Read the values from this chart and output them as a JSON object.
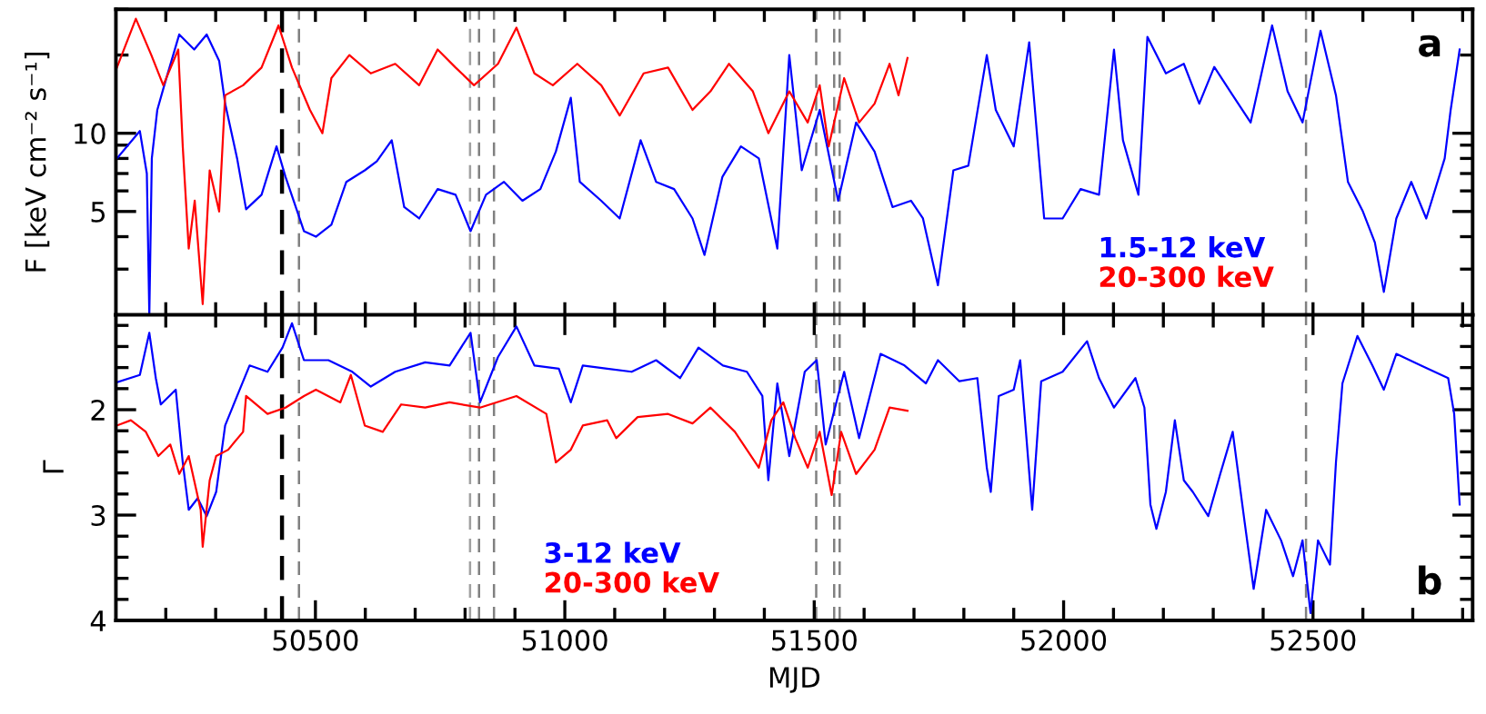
{
  "chart_data": [
    {
      "type": "line",
      "ylabel": "F [keV cm⁻² s⁻¹]",
      "log": "y",
      "tick_labels": "y",
      "legend": "bottom right",
      "annotations": [
        "a"
      ],
      "xlim": [
        50100,
        52820
      ],
      "xticks": [
        {
          "value": 50200,
          "label": null
        },
        {
          "value": 50300,
          "label": null
        },
        {
          "value": 50400,
          "label": null
        },
        {
          "value": 50500,
          "label": null
        },
        {
          "value": 50600,
          "label": null
        },
        {
          "value": 50700,
          "label": null
        },
        {
          "value": 50800,
          "label": null
        },
        {
          "value": 50900,
          "label": null
        },
        {
          "value": 51000,
          "label": null
        },
        {
          "value": 51100,
          "label": null
        },
        {
          "value": 51200,
          "label": null
        },
        {
          "value": 51300,
          "label": null
        },
        {
          "value": 51400,
          "label": null
        },
        {
          "value": 51500,
          "label": null
        },
        {
          "value": 51600,
          "label": null
        },
        {
          "value": 51700,
          "label": null
        },
        {
          "value": 51800,
          "label": null
        },
        {
          "value": 51900,
          "label": null
        },
        {
          "value": 52000,
          "label": null
        },
        {
          "value": 52100,
          "label": null
        },
        {
          "value": 52200,
          "label": null
        },
        {
          "value": 52300,
          "label": null
        },
        {
          "value": 52400,
          "label": null
        },
        {
          "value": 52500,
          "label": null
        },
        {
          "value": 52600,
          "label": null
        },
        {
          "value": 52700,
          "label": null
        },
        {
          "value": 52800,
          "label": null
        }
      ],
      "ylim": [
        2,
        30
      ],
      "yticks": [
        {
          "value": 2,
          "label": null
        },
        {
          "value": 3,
          "label": null
        },
        {
          "value": 4,
          "label": null
        },
        5,
        {
          "value": 6,
          "label": null
        },
        {
          "value": 7,
          "label": null
        },
        {
          "value": 8,
          "label": null
        },
        {
          "value": 9,
          "label": null
        },
        10,
        {
          "value": 20,
          "label": null
        },
        {
          "value": 30,
          "label": null
        }
      ],
      "ref_lines": [
        {
          "axis": "x",
          "value": 50433,
          "color": "#000000",
          "line_style": "dashed"
        },
        {
          "axis": "x",
          "value": 50467,
          "color": "#808080",
          "line_style": "dashed"
        },
        {
          "axis": "x",
          "value": 50810,
          "color": "#a0a0a0",
          "line_style": "dashed"
        },
        {
          "axis": "x",
          "value": 50828,
          "color": "#808080",
          "line_style": "dashed"
        },
        {
          "axis": "x",
          "value": 50858,
          "color": "#808080",
          "line_style": "dashed"
        },
        {
          "axis": "x",
          "value": 51504,
          "color": "#808080",
          "line_style": "dashed"
        },
        {
          "axis": "x",
          "value": 51540,
          "color": "#808080",
          "line_style": "dashed"
        },
        {
          "axis": "x",
          "value": 51551,
          "color": "#808080",
          "line_style": "dashed"
        },
        {
          "axis": "x",
          "value": 52486,
          "color": "#808080",
          "line_style": "dashed"
        }
      ],
      "series": [
        {
          "name": "1.5-12 keV",
          "color": "#0000ff",
          "x": [
            50102,
            50148,
            50162,
            50167,
            50172,
            50183,
            50197,
            50227,
            50257,
            50282,
            50307,
            50319,
            50343,
            50361,
            50392,
            50422,
            50440,
            50477,
            50501,
            50532,
            50562,
            50599,
            50623,
            50653,
            50678,
            50708,
            50745,
            50781,
            50811,
            50842,
            50878,
            50915,
            50951,
            50982,
            51012,
            51030,
            51073,
            51110,
            51152,
            51183,
            51219,
            51256,
            51280,
            51316,
            51353,
            51389,
            51426,
            51450,
            51475,
            51511,
            51548,
            51584,
            51621,
            51657,
            51694,
            51718,
            51748,
            51779,
            51809,
            51846,
            51864,
            51900,
            51931,
            51961,
            51998,
            52034,
            52071,
            52101,
            52119,
            52150,
            52168,
            52205,
            52241,
            52272,
            52302,
            52339,
            52375,
            52418,
            52449,
            52479,
            52515,
            52546,
            52570,
            52600,
            52624,
            52642,
            52667,
            52697,
            52727,
            52764,
            52776,
            52794
          ],
          "values": [
            8.0,
            10.2,
            7,
            2,
            8,
            12.3,
            15.3,
            24,
            21,
            24,
            19,
            13,
            8,
            5.1,
            5.8,
            8.9,
            6.8,
            4.2,
            4.0,
            4.45,
            6.5,
            7.2,
            7.8,
            9.4,
            5.2,
            4.7,
            6.1,
            5.8,
            4.2,
            5.8,
            6.5,
            5.5,
            6.1,
            8.5,
            13.7,
            6.5,
            5.5,
            4.7,
            9.4,
            6.5,
            6.1,
            4.7,
            3.4,
            6.8,
            8.9,
            8.0,
            3.6,
            20,
            7.2,
            12.3,
            5.5,
            11,
            8.5,
            5.2,
            5.5,
            4.7,
            2.6,
            7.2,
            7.5,
            20,
            12.3,
            8.9,
            22.4,
            4.7,
            4.7,
            6.1,
            5.8,
            21,
            9.4,
            5.8,
            23.5,
            17,
            18.5,
            13,
            18,
            14,
            11,
            26,
            14.5,
            11,
            24.8,
            14,
            6.5,
            5,
            3.8,
            2.45,
            4.7,
            6.5,
            4.7,
            8,
            12.3,
            21
          ]
        },
        {
          "name": "20-300 keV",
          "color": "#ff0000",
          "x": [
            50102,
            50140,
            50171,
            50195,
            50225,
            50234,
            50246,
            50258,
            50274,
            50288,
            50307,
            50319,
            50355,
            50392,
            50426,
            50453,
            50489,
            50514,
            50532,
            50568,
            50611,
            50660,
            50708,
            50745,
            50781,
            50818,
            50866,
            50903,
            50939,
            50976,
            51025,
            51073,
            51110,
            51158,
            51207,
            51256,
            51292,
            51329,
            51377,
            51408,
            51450,
            51487,
            51511,
            51529,
            51560,
            51590,
            51621,
            51651,
            51669,
            51687
          ],
          "values": [
            17.9,
            27.6,
            20,
            15.3,
            21,
            8.9,
            3.6,
            5.5,
            2.2,
            7.2,
            5.0,
            14,
            15.3,
            17.9,
            26,
            17.9,
            12.3,
            10,
            16.3,
            20,
            17,
            18.5,
            15.3,
            21,
            17.9,
            15.3,
            18.5,
            25.5,
            17,
            15.3,
            18.5,
            15.3,
            11.7,
            17,
            17.9,
            12.3,
            14.5,
            18.5,
            14.5,
            10,
            14.5,
            11,
            15.3,
            8.9,
            16.3,
            11,
            13,
            18.5,
            14,
            19.5
          ]
        }
      ]
    },
    {
      "type": "line",
      "ylabel": "Γ",
      "xlabel": "MJD",
      "legend": "bottom",
      "annotations": [
        "b"
      ],
      "xlim": [
        50100,
        52820
      ],
      "xticks": [
        {
          "value": 50200,
          "label": null
        },
        {
          "value": 50300,
          "label": null
        },
        {
          "value": 50400,
          "label": null
        },
        50500,
        {
          "value": 50600,
          "label": null
        },
        {
          "value": 50700,
          "label": null
        },
        {
          "value": 50800,
          "label": null
        },
        {
          "value": 50900,
          "label": null
        },
        51000,
        {
          "value": 51100,
          "label": null
        },
        {
          "value": 51200,
          "label": null
        },
        {
          "value": 51300,
          "label": null
        },
        {
          "value": 51400,
          "label": null
        },
        51500,
        {
          "value": 51600,
          "label": null
        },
        {
          "value": 51700,
          "label": null
        },
        {
          "value": 51800,
          "label": null
        },
        {
          "value": 51900,
          "label": null
        },
        52000,
        {
          "value": 52100,
          "label": null
        },
        {
          "value": 52200,
          "label": null
        },
        {
          "value": 52300,
          "label": null
        },
        {
          "value": 52400,
          "label": null
        },
        52500,
        {
          "value": 52600,
          "label": null
        },
        {
          "value": 52700,
          "label": null
        },
        {
          "value": 52800,
          "label": null
        }
      ],
      "ylim": [
        4,
        1.1
      ],
      "yticks": [
        {
          "value": 1.2,
          "label": null
        },
        {
          "value": 1.4,
          "label": null
        },
        {
          "value": 1.6,
          "label": null
        },
        {
          "value": 1.8,
          "label": null
        },
        2,
        {
          "value": 2.2,
          "label": null
        },
        {
          "value": 2.4,
          "label": null
        },
        {
          "value": 2.6,
          "label": null
        },
        {
          "value": 2.8,
          "label": null
        },
        3,
        {
          "value": 3.2,
          "label": null
        },
        {
          "value": 3.4,
          "label": null
        },
        {
          "value": 3.6,
          "label": null
        },
        {
          "value": 3.8,
          "label": null
        },
        4
      ],
      "ref_lines": [
        {
          "axis": "x",
          "value": 50433,
          "color": "#000000",
          "line_style": "dashed"
        },
        {
          "axis": "x",
          "value": 50467,
          "color": "#808080",
          "line_style": "dashed"
        },
        {
          "axis": "x",
          "value": 50810,
          "color": "#a0a0a0",
          "line_style": "dashed"
        },
        {
          "axis": "x",
          "value": 50828,
          "color": "#808080",
          "line_style": "dashed"
        },
        {
          "axis": "x",
          "value": 50858,
          "color": "#808080",
          "line_style": "dashed"
        },
        {
          "axis": "x",
          "value": 51504,
          "color": "#808080",
          "line_style": "dashed"
        },
        {
          "axis": "x",
          "value": 51540,
          "color": "#808080",
          "line_style": "dashed"
        },
        {
          "axis": "x",
          "value": 51551,
          "color": "#808080",
          "line_style": "dashed"
        },
        {
          "axis": "x",
          "value": 52486,
          "color": "#808080",
          "line_style": "dashed"
        }
      ],
      "series": [
        {
          "name": "3-12 keV",
          "color": "#0000ff",
          "x": [
            50102,
            50148,
            50167,
            50180,
            50190,
            50220,
            50234,
            50246,
            50264,
            50282,
            50301,
            50319,
            50343,
            50368,
            50404,
            50434,
            50453,
            50477,
            50526,
            50574,
            50611,
            50660,
            50720,
            50769,
            50811,
            50830,
            50866,
            50903,
            50939,
            50988,
            51012,
            51036,
            51085,
            51134,
            51183,
            51231,
            51268,
            51317,
            51365,
            51396,
            51408,
            51426,
            51450,
            51481,
            51505,
            51523,
            51560,
            51590,
            51633,
            51681,
            51724,
            51748,
            51791,
            51827,
            51846,
            51854,
            51870,
            51900,
            51913,
            51937,
            51955,
            51998,
            52047,
            52071,
            52101,
            52144,
            52162,
            52174,
            52186,
            52205,
            52223,
            52241,
            52259,
            52290,
            52314,
            52339,
            52363,
            52381,
            52406,
            52436,
            52460,
            52479,
            52495,
            52510,
            52534,
            52546,
            52559,
            52589,
            52619,
            52642,
            52667,
            52716,
            52771,
            52783,
            52794
          ],
          "values": [
            1.74,
            1.67,
            1.27,
            1.7,
            1.95,
            1.81,
            2.5,
            2.95,
            2.84,
            3.01,
            2.78,
            2.15,
            1.87,
            1.58,
            1.64,
            1.41,
            1.18,
            1.53,
            1.53,
            1.64,
            1.78,
            1.64,
            1.55,
            1.58,
            1.27,
            1.93,
            1.5,
            1.21,
            1.58,
            1.61,
            1.93,
            1.58,
            1.61,
            1.64,
            1.53,
            1.7,
            1.41,
            1.58,
            1.64,
            1.87,
            2.67,
            1.75,
            2.44,
            1.64,
            1.53,
            2.33,
            1.64,
            2.27,
            1.47,
            1.58,
            1.75,
            1.53,
            1.73,
            1.7,
            2.55,
            2.78,
            1.87,
            1.81,
            1.53,
            2.95,
            1.73,
            1.64,
            1.35,
            1.7,
            1.98,
            1.7,
            1.98,
            2.9,
            3.13,
            2.78,
            2.1,
            2.67,
            2.78,
            3.01,
            2.61,
            2.21,
            3.07,
            3.7,
            2.95,
            3.24,
            3.58,
            3.24,
            3.93,
            3.24,
            3.47,
            2.5,
            1.75,
            1.3,
            1.58,
            1.81,
            1.47,
            1.58,
            1.7,
            2.04,
            2.9
          ]
        },
        {
          "name": "20-300 keV",
          "color": "#ff0000",
          "x": [
            50102,
            50130,
            50160,
            50185,
            50209,
            50227,
            50246,
            50270,
            50274,
            50288,
            50301,
            50325,
            50355,
            50361,
            50404,
            50440,
            50477,
            50501,
            50550,
            50571,
            50599,
            50635,
            50672,
            50720,
            50769,
            50830,
            50903,
            50963,
            50982,
            51012,
            51036,
            51085,
            51103,
            51146,
            51207,
            51256,
            51292,
            51341,
            51389,
            51414,
            51438,
            51462,
            51487,
            51511,
            51535,
            51554,
            51584,
            51621,
            51651,
            51687
          ],
          "values": [
            2.15,
            2.1,
            2.21,
            2.44,
            2.33,
            2.61,
            2.44,
            2.95,
            3.3,
            2.67,
            2.44,
            2.38,
            2.21,
            1.87,
            2.04,
            1.98,
            1.87,
            1.81,
            1.93,
            1.67,
            2.15,
            2.21,
            1.95,
            1.98,
            1.93,
            1.98,
            1.87,
            2.04,
            2.5,
            2.38,
            2.15,
            2.1,
            2.27,
            2.07,
            2.04,
            2.13,
            1.98,
            2.21,
            2.55,
            2.1,
            1.93,
            2.27,
            2.55,
            2.21,
            2.81,
            2.21,
            2.61,
            2.38,
            1.98,
            2.01
          ]
        }
      ]
    }
  ]
}
